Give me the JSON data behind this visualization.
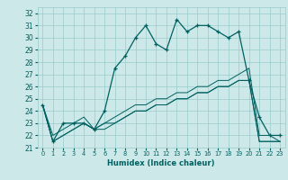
{
  "xlabel": "Humidex (Indice chaleur)",
  "bg_color": "#cce8e8",
  "grid_color": "#99cccc",
  "line_color": "#006060",
  "xlim": [
    -0.5,
    23.5
  ],
  "ylim": [
    21.0,
    32.5
  ],
  "xticks": [
    0,
    1,
    2,
    3,
    4,
    5,
    6,
    7,
    8,
    9,
    10,
    11,
    12,
    13,
    14,
    15,
    16,
    17,
    18,
    19,
    20,
    21,
    22,
    23
  ],
  "yticks": [
    21,
    22,
    23,
    24,
    25,
    26,
    27,
    28,
    29,
    30,
    31,
    32
  ],
  "humidex": [
    24.5,
    21.5,
    23.0,
    23.0,
    23.0,
    22.5,
    24.0,
    27.5,
    28.5,
    30.0,
    31.0,
    29.5,
    29.0,
    31.5,
    30.5,
    31.0,
    31.0,
    30.5,
    30.0,
    30.5,
    26.5,
    23.5,
    22.0,
    22.0
  ],
  "line2": [
    24.5,
    22.0,
    22.5,
    23.0,
    23.5,
    22.5,
    23.0,
    23.5,
    24.0,
    24.5,
    24.5,
    25.0,
    25.0,
    25.5,
    25.5,
    26.0,
    26.0,
    26.5,
    26.5,
    27.0,
    27.5,
    22.0,
    22.0,
    21.5
  ],
  "line3": [
    24.5,
    21.5,
    22.0,
    22.5,
    23.0,
    22.5,
    23.0,
    23.0,
    23.5,
    24.0,
    24.0,
    24.5,
    24.5,
    25.0,
    25.0,
    25.5,
    25.5,
    26.0,
    26.0,
    26.5,
    26.5,
    21.5,
    21.5,
    21.5
  ],
  "line4": [
    24.5,
    21.5,
    22.0,
    22.5,
    23.0,
    22.5,
    22.5,
    23.0,
    23.5,
    24.0,
    24.0,
    24.5,
    24.5,
    25.0,
    25.0,
    25.5,
    25.5,
    26.0,
    26.0,
    26.5,
    26.5,
    21.5,
    21.5,
    21.5
  ]
}
